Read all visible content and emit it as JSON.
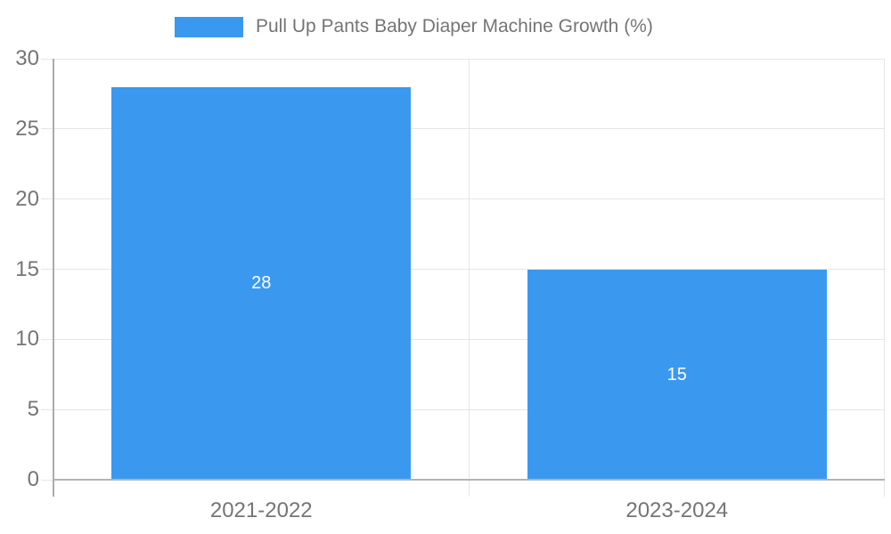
{
  "legend": {
    "label": "Pull Up Pants Baby Diaper Machine Growth (%)"
  },
  "chart_data": {
    "type": "bar",
    "title": "Pull Up Pants Baby Diaper Machine Growth (%)",
    "categories": [
      "2021-2022",
      "2023-2024"
    ],
    "values": [
      28,
      15
    ],
    "bar_labels": [
      "28",
      "15"
    ],
    "xlabel": "",
    "ylabel": "",
    "ylim": [
      0,
      30
    ],
    "yticks": [
      0,
      5,
      10,
      15,
      20,
      25,
      30
    ],
    "grid": true,
    "legend_position": "top",
    "bar_color": "#3a99ef"
  },
  "colors": {
    "bar": "#3a99ef",
    "text": "#757575",
    "bar_label_text": "#ffffff",
    "gridline": "#e6e6e6",
    "baseline": "#b3b3b3",
    "y_axis_line": "#ababab",
    "background": "#ffffff"
  }
}
